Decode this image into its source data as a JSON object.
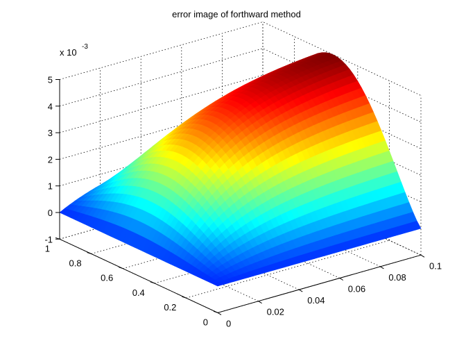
{
  "figure": {
    "title": "error image of forthward method",
    "exponent_base": "x 10",
    "exponent_power": "-3"
  },
  "chart_data": {
    "type": "surface",
    "title": "error image of forthward method",
    "x_axis": {
      "range": [
        0,
        0.1
      ],
      "ticks": [
        0,
        0.02,
        0.04,
        0.06,
        0.08,
        0.1
      ],
      "tick_labels": [
        "0",
        "0.02",
        "0.04",
        "0.06",
        "0.08",
        "0.1"
      ]
    },
    "y_axis": {
      "range": [
        0,
        1
      ],
      "ticks": [
        0,
        0.2,
        0.4,
        0.6,
        0.8,
        1
      ],
      "tick_labels": [
        "0",
        "0.2",
        "0.4",
        "0.6",
        "0.8",
        "1"
      ]
    },
    "z_axis": {
      "range": [
        -1,
        5
      ],
      "ticks": [
        -1,
        0,
        1,
        2,
        3,
        4,
        5
      ],
      "tick_labels": [
        "-1",
        "0",
        "1",
        "2",
        "3",
        "4",
        "5"
      ],
      "scale_factor": "x 10^-3"
    },
    "colormap": "jet",
    "grid": true,
    "surface_description": "error grows with x, peaks near 5e-3 at x=0.1 for mid y; near zero at y=0 and y=1 edges and at x=0",
    "z_max": 5,
    "z_min": 0
  }
}
